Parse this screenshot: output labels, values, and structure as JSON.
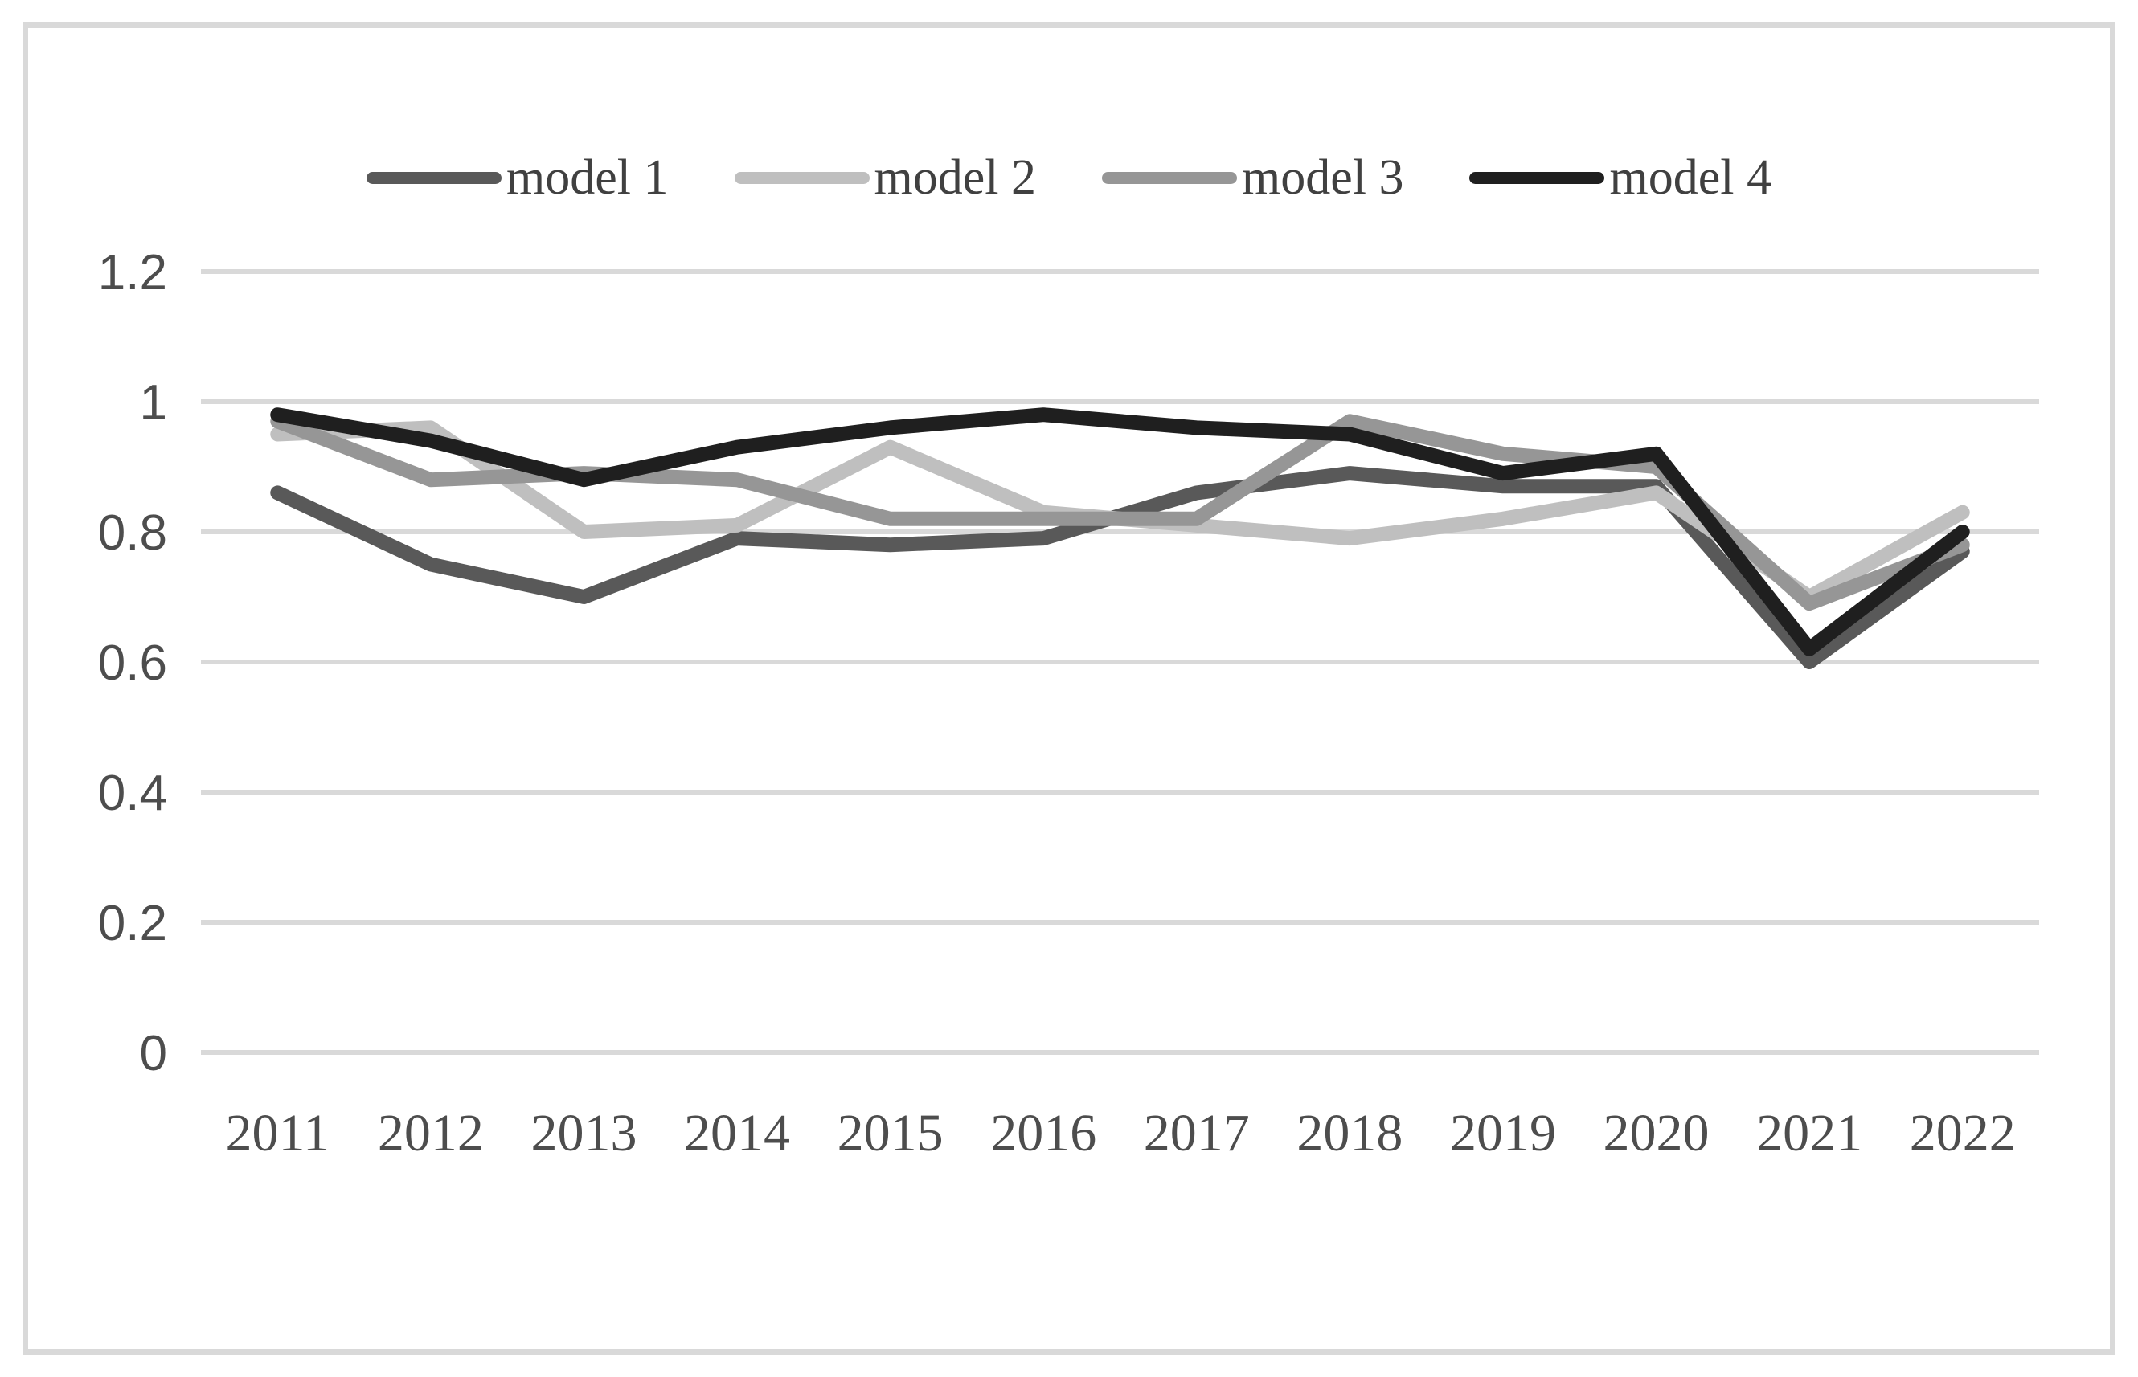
{
  "chart_data": {
    "type": "line",
    "title": "",
    "xlabel": "",
    "ylabel": "",
    "categories": [
      "2011",
      "2012",
      "2013",
      "2014",
      "2015",
      "2016",
      "2017",
      "2018",
      "2019",
      "2020",
      "2021",
      "2022"
    ],
    "series": [
      {
        "name": "model 1",
        "color": "#595959",
        "values": [
          0.86,
          0.75,
          0.7,
          0.79,
          0.78,
          0.79,
          0.86,
          0.89,
          0.87,
          0.87,
          0.6,
          0.77
        ]
      },
      {
        "name": "model 2",
        "color": "#bfbfbf",
        "values": [
          0.95,
          0.96,
          0.8,
          0.81,
          0.93,
          0.83,
          0.81,
          0.79,
          0.82,
          0.86,
          0.7,
          0.83
        ]
      },
      {
        "name": "model 3",
        "color": "#969696",
        "values": [
          0.97,
          0.88,
          0.89,
          0.88,
          0.82,
          0.82,
          0.82,
          0.97,
          0.92,
          0.9,
          0.69,
          0.78
        ]
      },
      {
        "name": "model 4",
        "color": "#1f1f1f",
        "values": [
          0.98,
          0.94,
          0.88,
          0.93,
          0.96,
          0.98,
          0.96,
          0.95,
          0.89,
          0.92,
          0.62,
          0.8
        ]
      }
    ],
    "ylim": [
      0,
      1.2
    ],
    "yticks": [
      0,
      0.2,
      0.4,
      0.6,
      0.8,
      1,
      1.2
    ],
    "ytick_labels": [
      "0",
      "0.2",
      "0.4",
      "0.6",
      "0.8",
      "1",
      "1.2"
    ],
    "grid": "horizontal",
    "gridline_color": "#d9d9d9",
    "axis_label_color": "#4d4d4d",
    "legend_position": "top"
  }
}
